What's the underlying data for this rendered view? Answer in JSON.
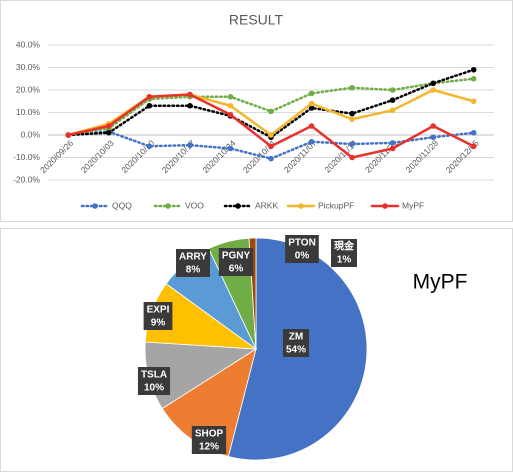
{
  "chart_data": [
    {
      "type": "line",
      "title": "RESULT",
      "categories": [
        "2020/09/26",
        "2020/10/03",
        "2020/10/10",
        "2020/10/17",
        "2020/10/24",
        "2020/10/31",
        "2020/11/07",
        "2020/11/14",
        "2020/11/21",
        "2020/11/28",
        "2020/12/05"
      ],
      "ylim": [
        -20,
        40
      ],
      "yticks": [
        {
          "value": -20,
          "label": "-20.0%"
        },
        {
          "value": -10,
          "label": "-10.0%"
        },
        {
          "value": 0,
          "label": "0.0%"
        },
        {
          "value": 10,
          "label": "10.0%"
        },
        {
          "value": 20,
          "label": "20.0%"
        },
        {
          "value": 30,
          "label": "30.0%"
        },
        {
          "value": 40,
          "label": "40.0%"
        }
      ],
      "grid": true,
      "legend": "bottom",
      "series": [
        {
          "name": "QQQ",
          "color": "#4472c4",
          "style": "dotted",
          "values": [
            0,
            1.5,
            -5,
            -4.5,
            -6,
            -10.5,
            -3,
            -4,
            -3.5,
            -1,
            1
          ]
        },
        {
          "name": "VOO",
          "color": "#70ad47",
          "style": "dotted",
          "values": [
            0,
            3,
            16,
            17,
            17,
            10.5,
            18.5,
            21,
            20,
            23,
            25
          ]
        },
        {
          "name": "ARKK",
          "color": "#000000",
          "style": "dotted",
          "values": [
            0,
            1,
            13,
            13,
            8.5,
            -1,
            12,
            9.5,
            15.5,
            23,
            29
          ]
        },
        {
          "name": "PickupPF",
          "color": "#f2b82d",
          "style": "solid",
          "values": [
            0,
            5,
            17,
            18,
            13,
            0,
            14,
            7,
            11,
            20,
            15
          ]
        },
        {
          "name": "MyPF",
          "color": "#e8312a",
          "style": "solid",
          "values": [
            0,
            4,
            17,
            18,
            9,
            -5,
            4,
            -10,
            -6,
            4,
            -5
          ]
        }
      ]
    },
    {
      "type": "pie",
      "title": "MyPF",
      "categories": [
        "ZM",
        "SHOP",
        "TSLA",
        "EXPI",
        "ARRY",
        "PGNY",
        "PTON",
        "現金"
      ],
      "values": [
        54,
        12,
        10,
        9,
        8,
        6,
        0,
        1
      ],
      "value_labels": [
        "54%",
        "12%",
        "10%",
        "9%",
        "8%",
        "6%",
        "0%",
        "1%"
      ],
      "colors": [
        "#4472c4",
        "#ed7d31",
        "#a5a5a5",
        "#ffc000",
        "#5b9bd5",
        "#70ad47",
        "#264478",
        "#9e480e"
      ]
    }
  ]
}
